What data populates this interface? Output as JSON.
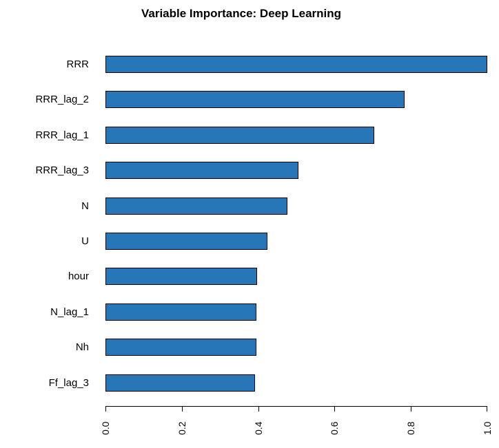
{
  "chart_data": {
    "type": "bar",
    "orientation": "horizontal",
    "title": "Variable Importance: Deep Learning",
    "xlabel": "",
    "ylabel": "",
    "xlim": [
      0,
      1.0
    ],
    "x_ticks": [
      "0.0",
      "0.2",
      "0.4",
      "0.6",
      "0.8",
      "1.0"
    ],
    "grid": false,
    "bar_color": "#2676b8",
    "categories": [
      "RRR",
      "RRR_lag_2",
      "RRR_lag_1",
      "RRR_lag_3",
      "N",
      "U",
      "hour",
      "N_lag_1",
      "Nh",
      "Ff_lag_3"
    ],
    "values": [
      1.0,
      0.783,
      0.704,
      0.505,
      0.477,
      0.424,
      0.397,
      0.395,
      0.395,
      0.392
    ]
  }
}
